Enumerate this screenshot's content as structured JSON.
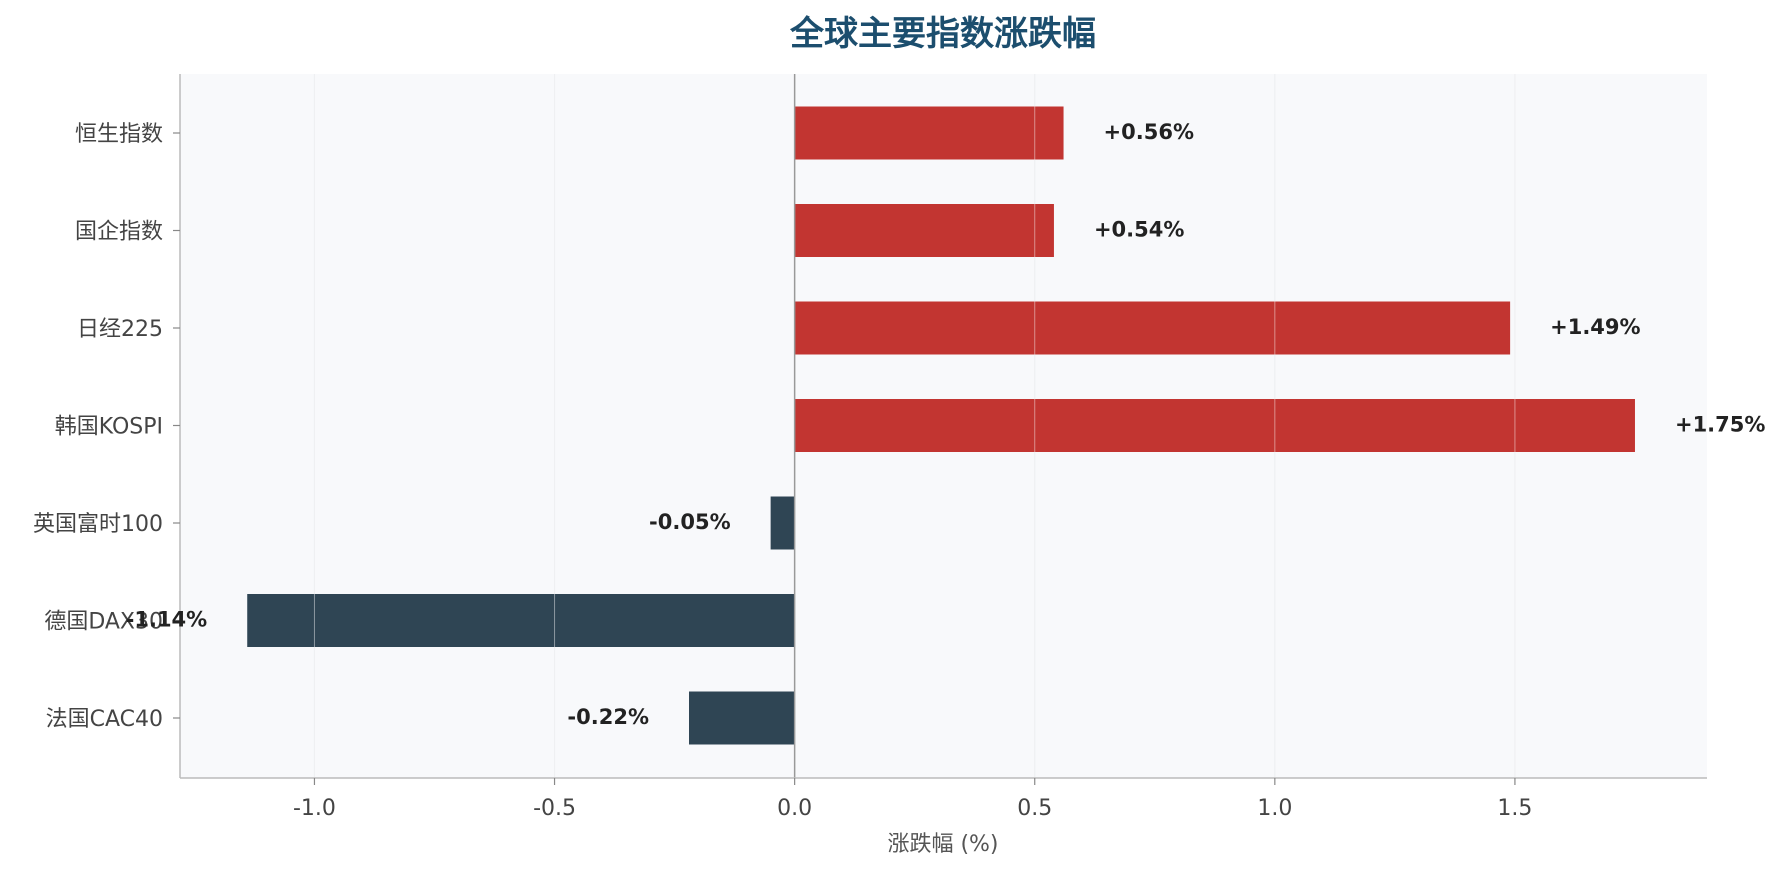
{
  "chart_data": {
    "type": "bar",
    "orientation": "horizontal",
    "title": "全球主要指数涨跌幅",
    "xlabel": "涨跌幅 (%)",
    "ylabel": "",
    "categories": [
      "恒生指数",
      "国企指数",
      "日经225",
      "韩国KOSPI",
      "英国富时100",
      "德国DAX30",
      "法国CAC40"
    ],
    "values": [
      0.56,
      0.54,
      1.49,
      1.75,
      -0.05,
      -1.14,
      -0.22
    ],
    "value_labels": [
      "+0.56%",
      "+0.54%",
      "+1.49%",
      "+1.75%",
      "-0.05%",
      "-1.14%",
      "-0.22%"
    ],
    "xlim": [
      -1.28,
      1.9
    ],
    "xticks": [
      -1.0,
      -0.5,
      0.0,
      0.5,
      1.0,
      1.5
    ],
    "xtick_labels": [
      "-1.0",
      "-0.5",
      "0.0",
      "0.5",
      "1.0",
      "1.5"
    ],
    "grid": "vertical",
    "colors": {
      "positive": "#c23531",
      "negative": "#2f4554",
      "plot_background": "#f8f9fb",
      "title": "#1c4e6e",
      "grid": "#e2e4e8",
      "zero_line": "#999999",
      "axis": "#bbbbbb"
    }
  }
}
